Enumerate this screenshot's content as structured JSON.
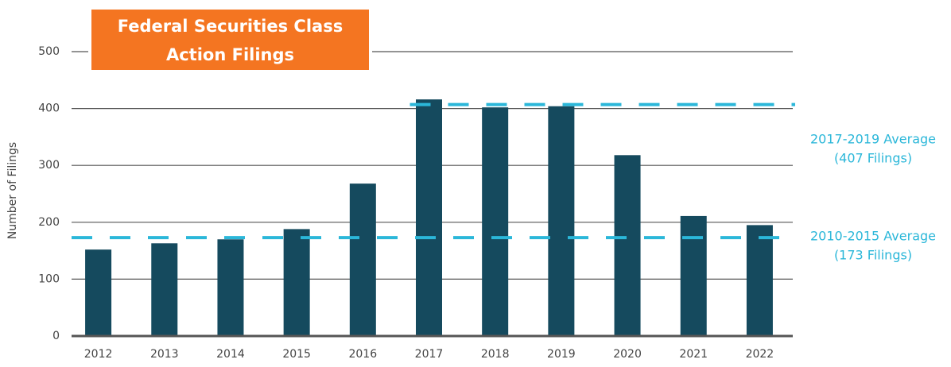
{
  "chart_data": {
    "type": "bar",
    "title_lines": [
      "Federal Securities Class",
      "Action Filings"
    ],
    "y_label": "Number of Filings",
    "categories": [
      "2012",
      "2013",
      "2014",
      "2015",
      "2016",
      "2017",
      "2018",
      "2019",
      "2020",
      "2021",
      "2022"
    ],
    "values": [
      152,
      163,
      170,
      188,
      268,
      416,
      402,
      404,
      318,
      211,
      195
    ],
    "color": "#154a5e",
    "ylim": [
      0,
      500
    ],
    "yticks": [
      0,
      100,
      200,
      300,
      400,
      500
    ],
    "grid": true,
    "reference_lines": [
      {
        "value": 407,
        "start": "2017",
        "label_lines": [
          "2017-2019 Average",
          "(407 Filings)"
        ],
        "color": "#2bb7d9"
      },
      {
        "value": 173,
        "label_lines": [
          "2010-2015 Average",
          "(173 Filings)"
        ],
        "color": "#2bb7d9"
      }
    ]
  }
}
